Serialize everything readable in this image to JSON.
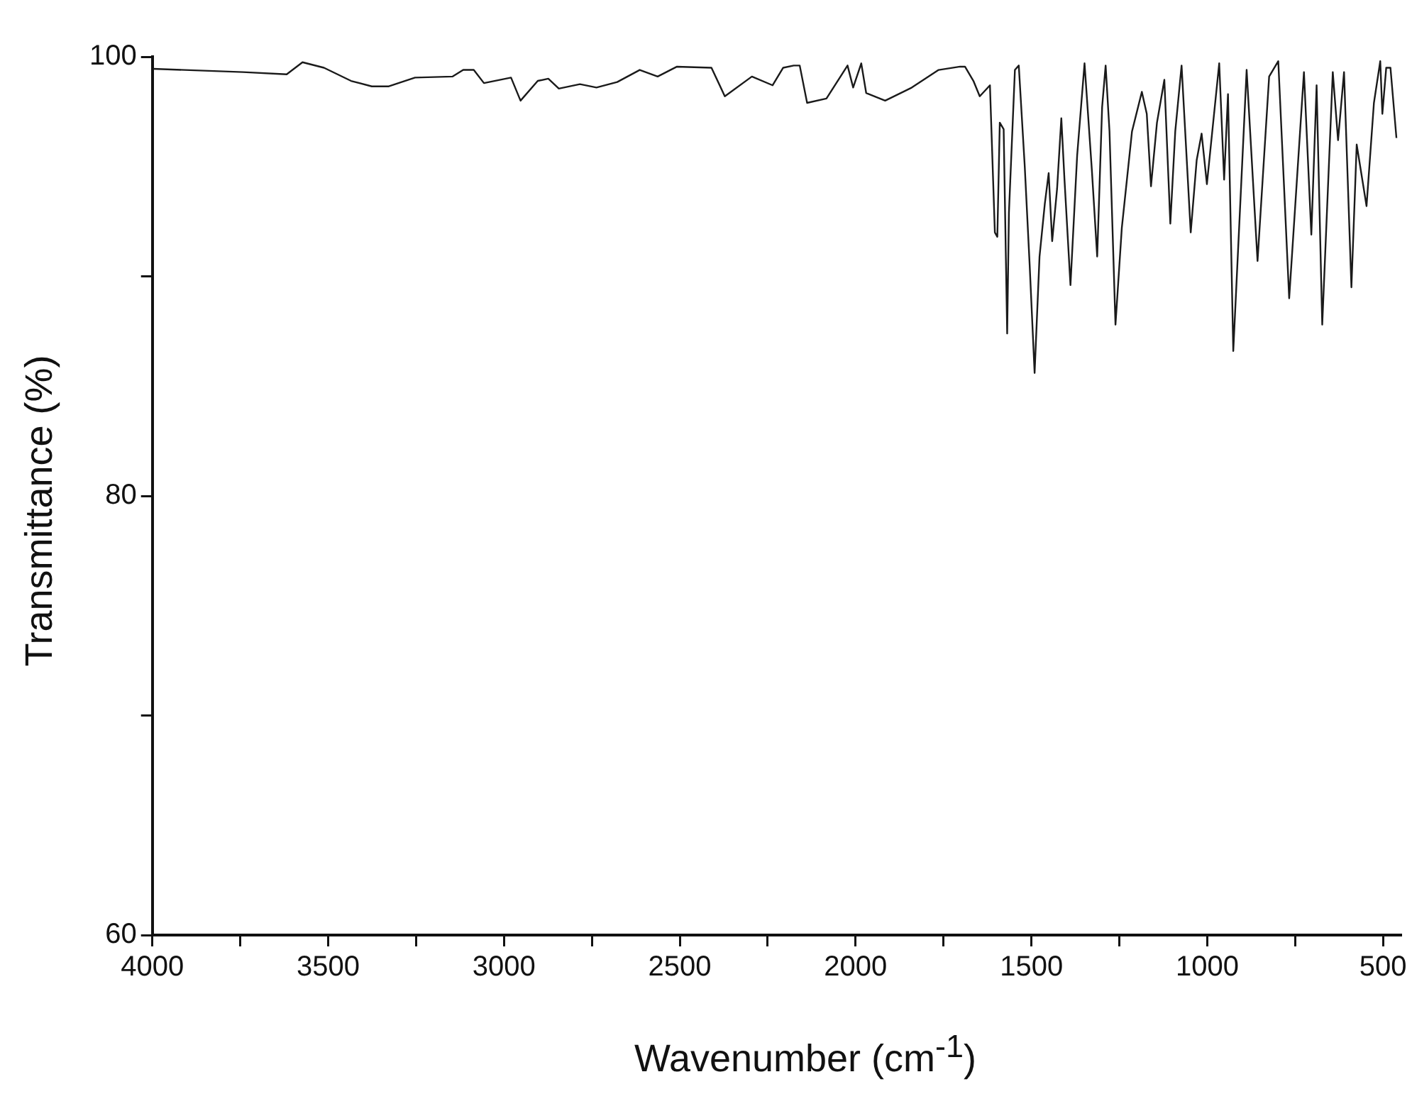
{
  "chart_data": {
    "type": "line",
    "xlabel": "Wavenumber (cm$^{-1}$)",
    "ylabel": "Transmittance (%)",
    "xlim": [
      4000,
      450
    ],
    "xticks": [
      4000,
      {
        "value": 3750,
        "label": null
      },
      3500,
      {
        "value": 3250,
        "label": null
      },
      3000,
      {
        "value": 2750,
        "label": null
      },
      2500,
      {
        "value": 2250,
        "label": null
      },
      2000,
      {
        "value": 1750,
        "label": null
      },
      1500,
      {
        "value": 1250,
        "label": null
      },
      1000,
      {
        "value": 750,
        "label": null
      },
      500
    ],
    "ylim": [
      60,
      100
    ],
    "yticks": [
      60,
      {
        "value": 70,
        "label": null
      },
      80,
      {
        "value": 90,
        "label": null
      },
      100
    ],
    "grid": false,
    "legend": false,
    "marker": "none",
    "line_style": "solid",
    "series": [
      {
        "color": "#1a1a1a",
        "x": [
          3998,
          3742,
          3618,
          3573,
          3512,
          3435,
          3376,
          3329,
          3253,
          3146,
          3116,
          3086,
          3057,
          2980,
          2953,
          2904,
          2874,
          2844,
          2784,
          2737,
          2678,
          2614,
          2563,
          2508,
          2410,
          2372,
          2295,
          2236,
          2206,
          2176,
          2159,
          2138,
          2083,
          2023,
          2007,
          1984,
          1970,
          1916,
          1840,
          1764,
          1703,
          1689,
          1665,
          1647,
          1618,
          1604,
          1597,
          1590,
          1579,
          1569,
          1564,
          1547,
          1536,
          1519,
          1505,
          1491,
          1477,
          1462,
          1451,
          1441,
          1427,
          1415,
          1406,
          1389,
          1370,
          1349,
          1328,
          1313,
          1299,
          1289,
          1278,
          1261,
          1243,
          1214,
          1186,
          1172,
          1160,
          1143,
          1122,
          1105,
          1091,
          1073,
          1047,
          1030,
          1016,
          1001,
          966,
          952,
          941,
          926,
          888,
          857,
          824,
          798,
          767,
          725,
          704,
          689,
          673,
          643,
          628,
          611,
          590,
          575,
          547,
          526,
          508,
          502,
          491,
          479,
          462
        ],
        "values": [
          99.45,
          99.3,
          99.2,
          99.75,
          99.5,
          98.9,
          98.65,
          98.65,
          99.05,
          99.1,
          99.4,
          99.4,
          98.8,
          99.05,
          98.0,
          98.9,
          99.0,
          98.55,
          98.75,
          98.6,
          98.85,
          99.4,
          99.1,
          99.55,
          99.5,
          98.2,
          99.1,
          98.7,
          99.5,
          99.6,
          99.6,
          97.9,
          98.1,
          99.6,
          98.6,
          99.7,
          98.35,
          98.0,
          98.6,
          99.4,
          99.55,
          99.55,
          98.9,
          98.2,
          98.7,
          92.0,
          91.8,
          97.0,
          96.7,
          87.4,
          92.9,
          99.4,
          99.6,
          95.0,
          90.5,
          85.6,
          90.9,
          93.3,
          94.7,
          91.6,
          94.0,
          97.2,
          94.4,
          89.6,
          95.5,
          99.7,
          94.8,
          90.9,
          97.7,
          99.6,
          96.6,
          87.8,
          92.2,
          96.6,
          98.4,
          97.4,
          94.1,
          97.0,
          98.95,
          92.4,
          96.6,
          99.6,
          92.0,
          95.3,
          96.5,
          94.2,
          99.7,
          94.4,
          98.3,
          86.6,
          99.4,
          90.7,
          99.1,
          99.8,
          89.0,
          99.3,
          91.9,
          98.7,
          87.8,
          99.3,
          96.2,
          99.3,
          89.5,
          96.0,
          93.2,
          97.9,
          99.8,
          97.4,
          99.5,
          99.5,
          96.3
        ]
      }
    ]
  }
}
